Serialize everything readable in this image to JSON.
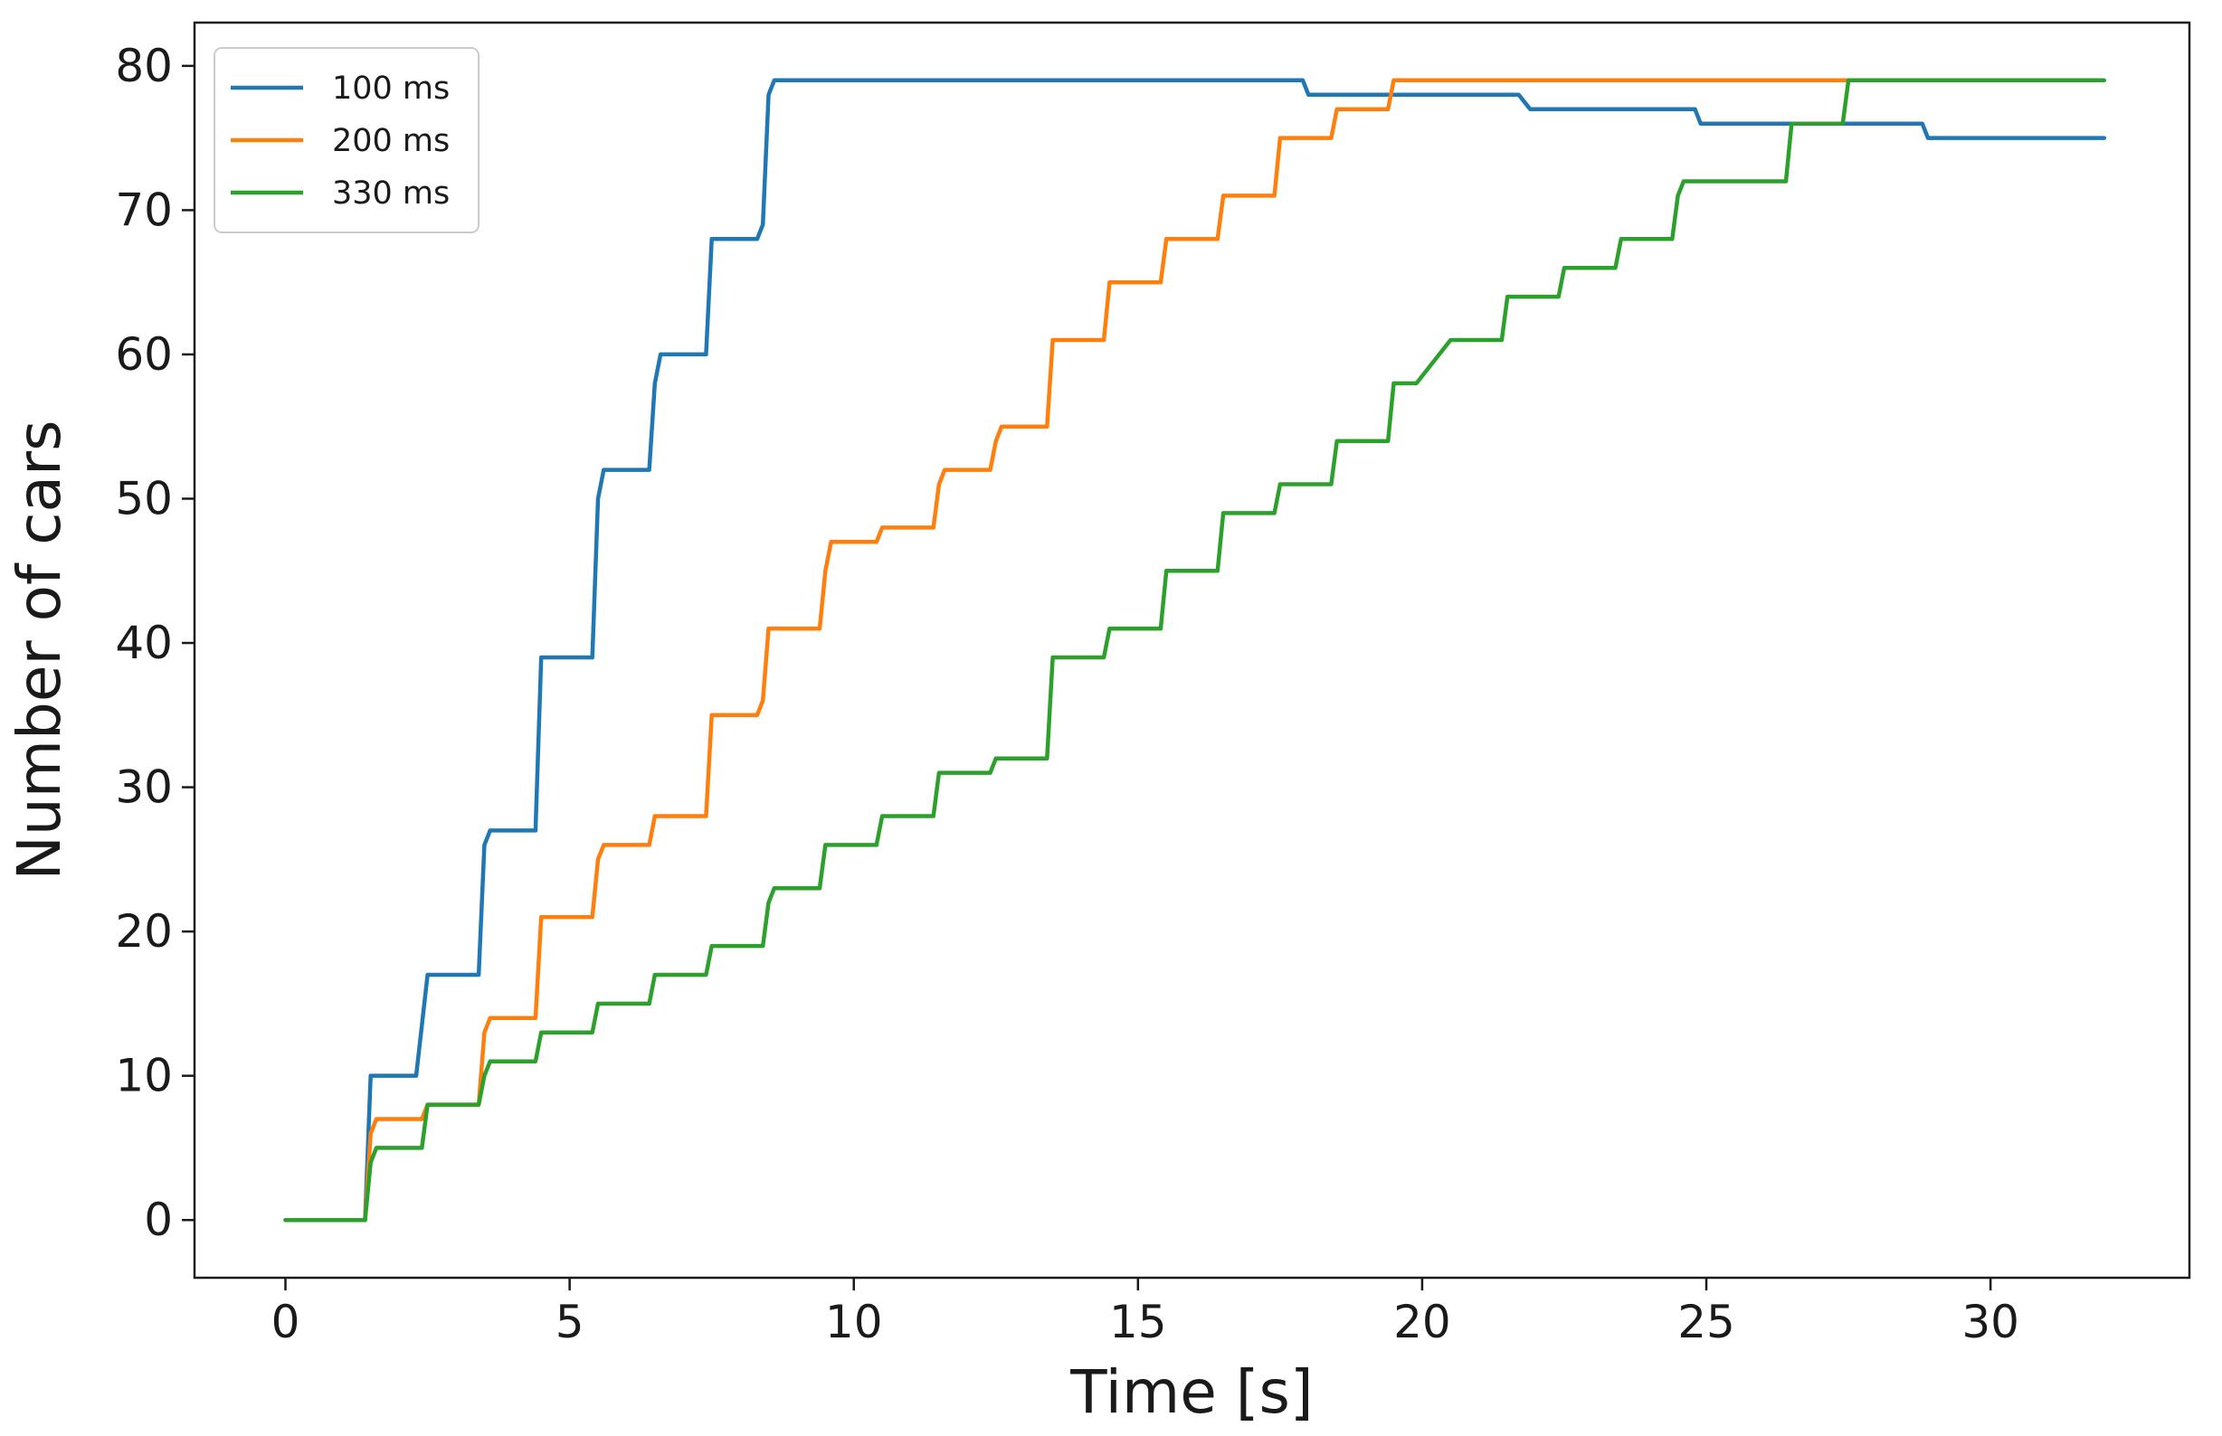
{
  "chart_data": {
    "type": "line",
    "title": "",
    "xlabel": "Time [s]",
    "ylabel": "Number of cars",
    "xlim": [
      -1.6,
      33.5
    ],
    "ylim": [
      -4,
      83
    ],
    "xticks": [
      0,
      5,
      10,
      15,
      20,
      25,
      30
    ],
    "yticks": [
      0,
      10,
      20,
      30,
      40,
      50,
      60,
      70,
      80
    ],
    "grid": false,
    "legend_position": "top-left",
    "series": [
      {
        "name": "100 ms",
        "color": "#1f77b4",
        "x": [
          0,
          1.4,
          1.5,
          2.3,
          2.5,
          3.4,
          3.5,
          3.6,
          4.4,
          4.5,
          5.4,
          5.5,
          5.6,
          6.4,
          6.5,
          6.6,
          7.4,
          7.5,
          8.3,
          8.4,
          8.5,
          8.6,
          17.9,
          18.0,
          21.7,
          21.9,
          24.8,
          24.9,
          28.8,
          28.9,
          32
        ],
        "y": [
          0,
          0,
          10,
          10,
          17,
          17,
          26,
          27,
          27,
          39,
          39,
          50,
          52,
          52,
          58,
          60,
          60,
          68,
          68,
          69,
          78,
          79,
          79,
          78,
          78,
          77,
          77,
          76,
          76,
          75,
          75
        ]
      },
      {
        "name": "200 ms",
        "color": "#ff7f0e",
        "x": [
          0,
          1.4,
          1.5,
          1.6,
          2.4,
          2.5,
          3.4,
          3.5,
          3.6,
          4.4,
          4.5,
          5.4,
          5.5,
          5.6,
          6.4,
          6.5,
          7.4,
          7.5,
          8.3,
          8.4,
          8.5,
          9.4,
          9.5,
          9.6,
          10.4,
          10.5,
          11.4,
          11.5,
          11.6,
          12.4,
          12.5,
          12.6,
          13.4,
          13.5,
          14.4,
          14.5,
          15.4,
          15.5,
          16.4,
          16.5,
          17.4,
          17.5,
          18.4,
          18.5,
          19.4,
          19.5,
          27.5
        ],
        "y": [
          0,
          0,
          6,
          7,
          7,
          8,
          8,
          13,
          14,
          14,
          21,
          21,
          25,
          26,
          26,
          28,
          28,
          35,
          35,
          36,
          41,
          41,
          45,
          47,
          47,
          48,
          48,
          51,
          52,
          52,
          54,
          55,
          55,
          61,
          61,
          65,
          65,
          68,
          68,
          71,
          71,
          75,
          75,
          77,
          77,
          79,
          79
        ]
      },
      {
        "name": "330 ms",
        "color": "#2ca02c",
        "x": [
          0,
          1.4,
          1.5,
          1.6,
          2.4,
          2.5,
          3.4,
          3.5,
          3.6,
          4.4,
          4.5,
          5.4,
          5.5,
          6.4,
          6.5,
          7.4,
          7.5,
          8.4,
          8.5,
          8.6,
          9.4,
          9.5,
          10.4,
          10.5,
          11.4,
          11.5,
          12.4,
          12.5,
          13.4,
          13.5,
          14.4,
          14.5,
          15.4,
          15.5,
          16.4,
          16.5,
          17.4,
          17.5,
          18.4,
          18.5,
          19.4,
          19.5,
          19.9,
          20.1,
          20.3,
          20.5,
          21.4,
          21.5,
          22.4,
          22.5,
          23.4,
          23.5,
          24.4,
          24.5,
          24.6,
          26.4,
          26.5,
          27.4,
          27.5,
          32
        ],
        "y": [
          0,
          0,
          4,
          5,
          5,
          8,
          8,
          10,
          11,
          11,
          13,
          13,
          15,
          15,
          17,
          17,
          19,
          19,
          22,
          23,
          23,
          26,
          26,
          28,
          28,
          31,
          31,
          32,
          32,
          39,
          39,
          41,
          41,
          45,
          45,
          49,
          49,
          51,
          51,
          54,
          54,
          58,
          58,
          59,
          60,
          61,
          61,
          64,
          64,
          66,
          66,
          68,
          68,
          71,
          72,
          72,
          76,
          76,
          79,
          79
        ]
      }
    ]
  }
}
